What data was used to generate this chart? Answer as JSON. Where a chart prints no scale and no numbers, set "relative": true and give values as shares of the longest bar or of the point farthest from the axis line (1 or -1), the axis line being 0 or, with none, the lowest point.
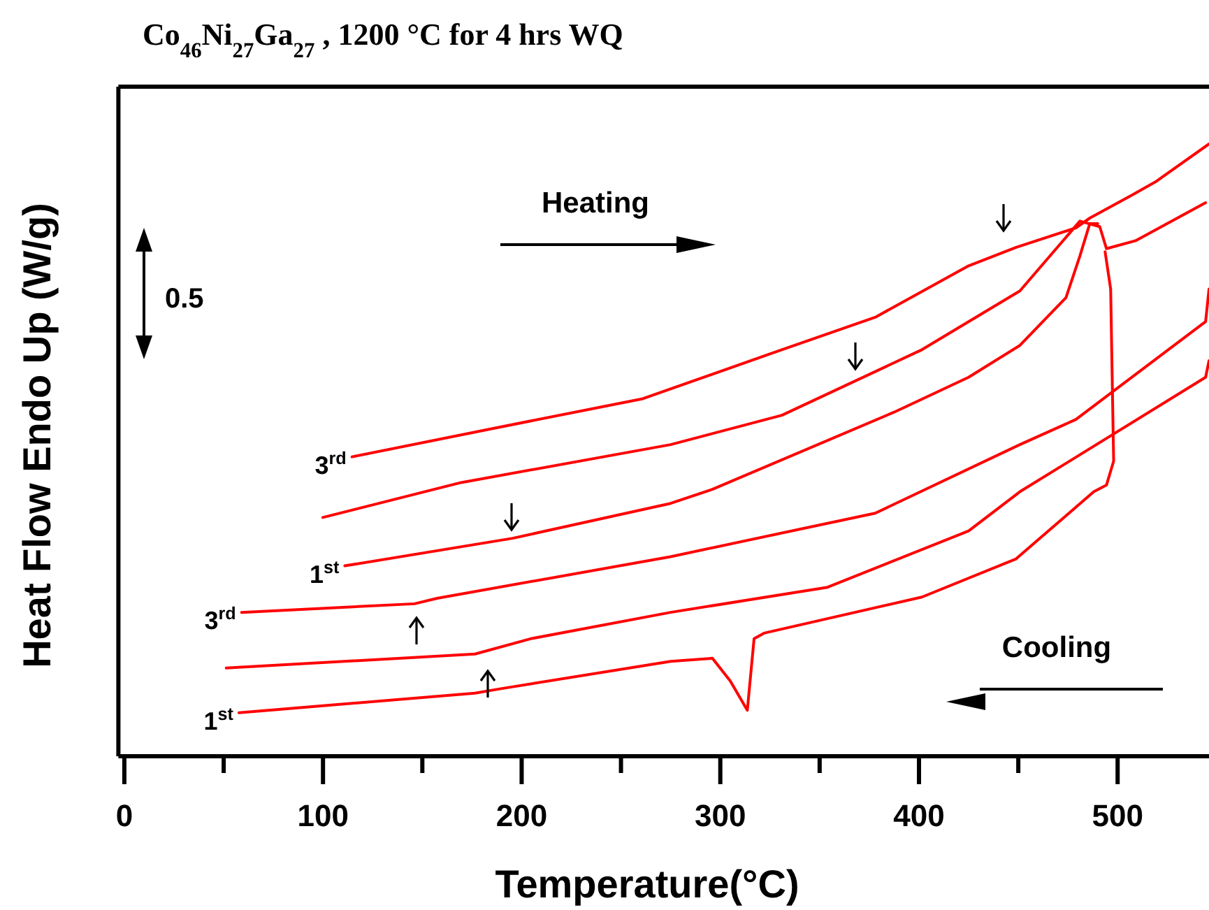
{
  "chart_data": {
    "type": "line",
    "title": "Co$_{46}$Ni$_{27}$Ga$_{27}$ , 1200 °C for 4 hrs WQ",
    "xlabel": "Temperature(°C)",
    "ylabel": "Heat Flow Endo Up (W/g)",
    "relative": true,
    "xlim": [
      -3,
      546
    ],
    "xticks": [
      0,
      {
        "value": 50,
        "label": null
      },
      100,
      {
        "value": 150,
        "label": null
      },
      200,
      {
        "value": 250,
        "label": null
      },
      300,
      {
        "value": 350,
        "label": null
      },
      400,
      {
        "value": 450,
        "label": null
      },
      500
    ],
    "series": [
      {
        "name": "3$^{rd}$",
        "color": "#ff0000",
        "x": [
          114.6,
          183.5,
          261,
          331,
          378,
          425,
          448.7,
          479,
          486,
          507,
          519,
          546
        ],
        "values": [
          0.489,
          0.534,
          0.584,
          0.664,
          0.717,
          0.801,
          0.831,
          0.863,
          0.879,
          0.916,
          0.938,
          1
        ]
      },
      {
        "color": "#ff0000",
        "x": [
          99.9,
          169.5,
          275,
          331,
          401.5,
          450.8,
          481,
          491,
          494.4,
          509,
          544.3
        ],
        "values": [
          0.39,
          0.447,
          0.509,
          0.557,
          0.664,
          0.76,
          0.874,
          0.865,
          0.829,
          0.842,
          0.904
        ]
      },
      {
        "name": "1$^{st}$",
        "color": "#ff0000",
        "x": [
          111,
          195.5,
          275,
          296,
          387.5,
          425,
          450.8,
          474,
          481,
          486,
          490
        ],
        "values": [
          0.311,
          0.356,
          0.413,
          0.436,
          0.562,
          0.619,
          0.671,
          0.749,
          0.817,
          0.87,
          0.87
        ]
      },
      {
        "name": "3$^{rd}$",
        "color": "#ff0000",
        "x": [
          546,
          544.3,
          479,
          450.8,
          378,
          275,
          157.5,
          146,
          59
        ],
        "values": [
          0.763,
          0.71,
          0.55,
          0.509,
          0.397,
          0.326,
          0.258,
          0.249,
          0.235
        ]
      },
      {
        "color": "#ff0000",
        "x": [
          546,
          544.3,
          450.8,
          425,
          354,
          275,
          204.6,
          176.5,
          51.3
        ],
        "values": [
          0.646,
          0.619,
          0.432,
          0.368,
          0.276,
          0.235,
          0.192,
          0.167,
          0.144
        ]
      },
      {
        "name": "1$^{st}$",
        "color": "#ff0000",
        "x": [
          493.7,
          496.5,
          498,
          494.4,
          488,
          448.7,
          401.5,
          322,
          317,
          313.6,
          305,
          296,
          275,
          189,
          176.5,
          57.7
        ],
        "values": [
          0.824,
          0.763,
          0.482,
          0.443,
          0.432,
          0.322,
          0.26,
          0.201,
          0.192,
          0.075,
          0.123,
          0.16,
          0.155,
          0.11,
          0.103,
          0.071
        ]
      }
    ],
    "annotations": [
      "Heating",
      "Cooling",
      "0.5"
    ]
  }
}
